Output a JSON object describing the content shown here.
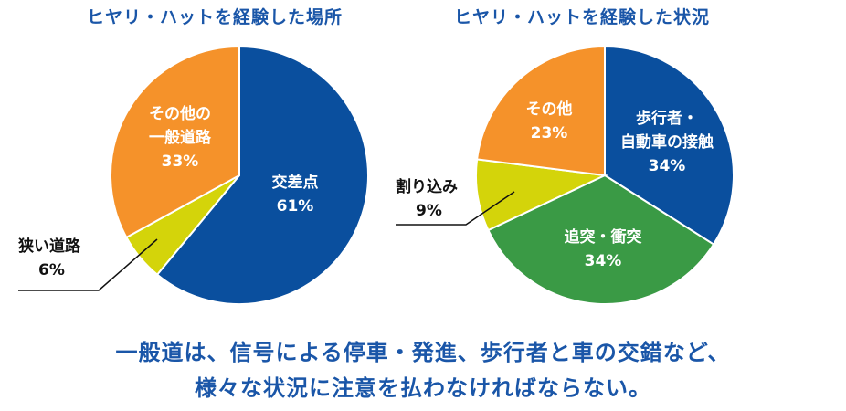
{
  "chart_data": [
    {
      "type": "pie",
      "title": "ヒヤリ・ハットを経験した場所",
      "slices": [
        {
          "lines": [
            "交差点"
          ],
          "value": 61,
          "value_label": "61%",
          "color": "#0a4f9e"
        },
        {
          "lines": [
            "狭い道路"
          ],
          "value": 6,
          "value_label": "6%",
          "color": "#d4d40a"
        },
        {
          "lines": [
            "その他の",
            "一般道路"
          ],
          "value": 33,
          "value_label": "33%",
          "color": "#f5922a"
        }
      ]
    },
    {
      "type": "pie",
      "title": "ヒヤリ・ハットを経験した状況",
      "slices": [
        {
          "lines": [
            "歩行者・",
            "自動車の接触"
          ],
          "value": 34,
          "value_label": "34%",
          "color": "#0a4f9e"
        },
        {
          "lines": [
            "追突・衝突"
          ],
          "value": 34,
          "value_label": "34%",
          "color": "#3a9a45"
        },
        {
          "lines": [
            "割り込み"
          ],
          "value": 9,
          "value_label": "9%",
          "color": "#d4d40a"
        },
        {
          "lines": [
            "その他"
          ],
          "value": 23,
          "value_label": "23%",
          "color": "#f5922a"
        }
      ]
    }
  ],
  "caption": {
    "line1": "一般道は、信号による停車・発進、歩行者と車の交錯など、",
    "line2": "様々な状況に注意を払わなければならない。"
  }
}
